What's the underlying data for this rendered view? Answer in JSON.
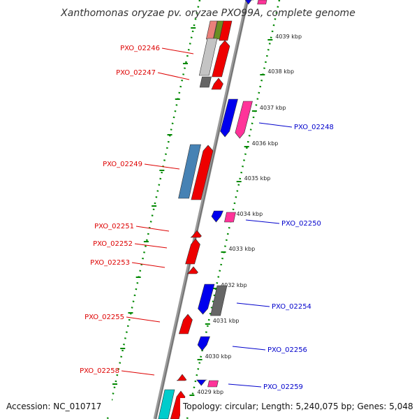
{
  "title": "Xanthomonas oryzae pv. oryzae PXO99A, complete genome",
  "footer": {
    "accession": "Accession: NC_010717",
    "topology": "Topology: circular; Length: 5,240,075 bp; Genes: 5,048"
  },
  "colors": {
    "reverse_label": "#dd0000",
    "forward_label": "#0000cc",
    "tick": "#008800",
    "backbone": "#888888"
  },
  "ticks": [
    {
      "label": "4039 kbp"
    },
    {
      "label": "4038 kbp"
    },
    {
      "label": "4037 kbp"
    },
    {
      "label": "4036 kbp"
    },
    {
      "label": "4035 kbp"
    },
    {
      "label": "4034 kbp"
    },
    {
      "label": "4033 kbp"
    },
    {
      "label": "4032 kbp"
    },
    {
      "label": "4031 kbp"
    },
    {
      "label": "4030 kbp"
    },
    {
      "label": "4029 kbp"
    }
  ],
  "labeled_genes": [
    {
      "label": "PXO_02246",
      "strand": "reverse"
    },
    {
      "label": "PXO_02247",
      "strand": "reverse"
    },
    {
      "label": "PXO_02248",
      "strand": "forward"
    },
    {
      "label": "PXO_02249",
      "strand": "reverse"
    },
    {
      "label": "PXO_02250",
      "strand": "forward"
    },
    {
      "label": "PXO_02251",
      "strand": "reverse"
    },
    {
      "label": "PXO_02252",
      "strand": "reverse"
    },
    {
      "label": "PXO_02253",
      "strand": "reverse"
    },
    {
      "label": "PXO_02254",
      "strand": "forward"
    },
    {
      "label": "PXO_02255",
      "strand": "reverse"
    },
    {
      "label": "PXO_02256",
      "strand": "forward"
    },
    {
      "label": "PXO_02258",
      "strand": "reverse"
    },
    {
      "label": "PXO_02259",
      "strand": "forward"
    }
  ]
}
